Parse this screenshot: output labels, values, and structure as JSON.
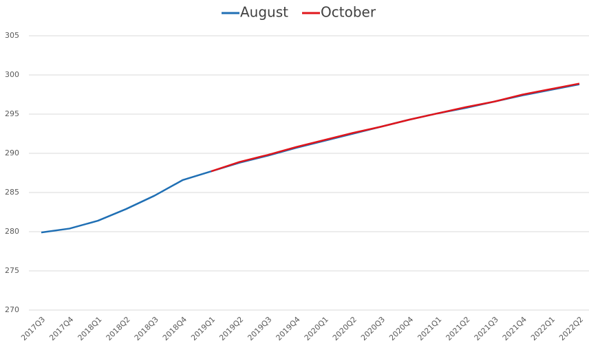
{
  "chart_data": {
    "type": "line",
    "categories": [
      "2017Q3",
      "2017Q4",
      "2018Q1",
      "2018Q2",
      "2018Q3",
      "2018Q4",
      "2019Q1",
      "2019Q2",
      "2019Q3",
      "2019Q4",
      "2020Q1",
      "2020Q2",
      "2020Q3",
      "2020Q4",
      "2021Q1",
      "2021Q2",
      "2021Q3",
      "2021Q4",
      "2022Q1",
      "2022Q2"
    ],
    "series": [
      {
        "name": "August",
        "color": "#1f6fb4",
        "values": [
          279.9,
          280.4,
          281.4,
          282.9,
          284.6,
          286.6,
          287.7,
          288.8,
          289.7,
          290.7,
          291.6,
          292.5,
          293.4,
          294.3,
          295.1,
          295.8,
          296.6,
          297.4,
          298.1,
          298.8
        ]
      },
      {
        "name": "October",
        "color": "#e0151b",
        "values": [
          null,
          null,
          null,
          null,
          null,
          null,
          287.7,
          288.9,
          289.8,
          290.8,
          291.7,
          292.6,
          293.4,
          294.3,
          295.1,
          295.9,
          296.6,
          297.5,
          298.2,
          298.9
        ]
      }
    ],
    "ylim": [
      270,
      305
    ],
    "yticks": [
      270,
      275,
      280,
      285,
      290,
      295,
      300,
      305
    ],
    "grid": true,
    "legend": "top"
  }
}
